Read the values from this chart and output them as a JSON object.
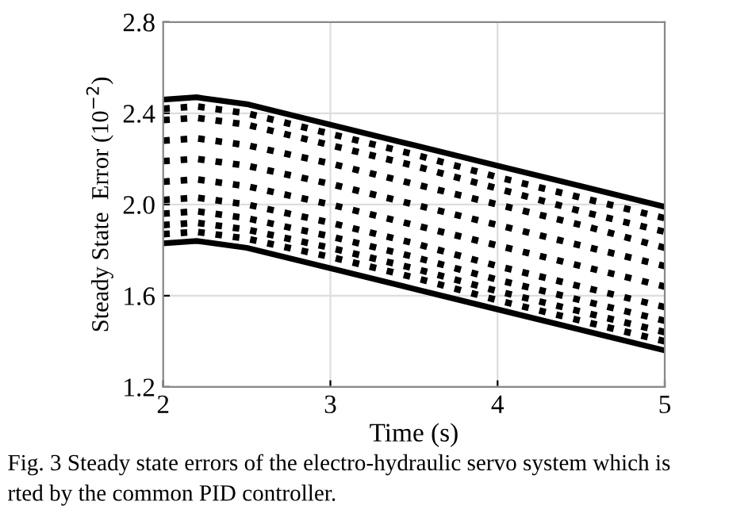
{
  "chart_data": {
    "type": "line",
    "xlabel": "Time (s)",
    "ylabel": "Steady State  Error (10$^{−2}$)",
    "annotations": [
      "Fig. 3 Steady state errors of the electro-hydraulic servo system which is",
      "rted by the common PID controller."
    ],
    "xlim": [
      2,
      5
    ],
    "xticks": [
      2,
      3,
      4,
      5
    ],
    "ylim": [
      1.2,
      2.8
    ],
    "yticks": [
      1.2,
      1.6,
      {
        "value": 2,
        "label": "2.0"
      },
      2.4,
      2.8
    ],
    "grid": true,
    "x": [
      2,
      2.2,
      2.5,
      3,
      3.5,
      4,
      4.5,
      5
    ],
    "series": [
      {
        "color": "#000000",
        "line_style": "solid",
        "values": [
          2.46,
          2.47,
          2.44,
          2.35,
          2.26,
          2.17,
          2.08,
          1.99
        ]
      },
      {
        "color": "#000000",
        "line_style": "dotted",
        "values": [
          2.42,
          2.43,
          2.4,
          2.31,
          2.22,
          2.12,
          2.03,
          1.94
        ]
      },
      {
        "color": "#000000",
        "line_style": "dotted",
        "values": [
          2.37,
          2.38,
          2.35,
          2.26,
          2.17,
          2.07,
          1.97,
          1.88
        ]
      },
      {
        "color": "#000000",
        "line_style": "dotted",
        "values": [
          2.28,
          2.29,
          2.26,
          2.18,
          2.09,
          2.0,
          1.91,
          1.81
        ]
      },
      {
        "color": "#000000",
        "line_style": "dotted",
        "values": [
          2.19,
          2.2,
          2.17,
          2.09,
          2.0,
          1.91,
          1.82,
          1.73
        ]
      },
      {
        "color": "#000000",
        "line_style": "dotted",
        "values": [
          2.1,
          2.11,
          2.08,
          2.0,
          1.91,
          1.82,
          1.73,
          1.64
        ]
      },
      {
        "color": "#000000",
        "line_style": "dotted",
        "values": [
          2.02,
          2.03,
          2.0,
          1.92,
          1.83,
          1.73,
          1.64,
          1.55
        ]
      },
      {
        "color": "#000000",
        "line_style": "dotted",
        "values": [
          1.96,
          1.97,
          1.94,
          1.86,
          1.77,
          1.67,
          1.58,
          1.49
        ]
      },
      {
        "color": "#000000",
        "line_style": "dotted",
        "values": [
          1.91,
          1.92,
          1.89,
          1.81,
          1.72,
          1.62,
          1.53,
          1.44
        ]
      },
      {
        "color": "#000000",
        "line_style": "dotted",
        "values": [
          1.87,
          1.88,
          1.85,
          1.77,
          1.68,
          1.58,
          1.49,
          1.4
        ]
      },
      {
        "color": "#000000",
        "line_style": "solid",
        "values": [
          1.83,
          1.84,
          1.81,
          1.72,
          1.63,
          1.54,
          1.45,
          1.36
        ]
      }
    ]
  }
}
